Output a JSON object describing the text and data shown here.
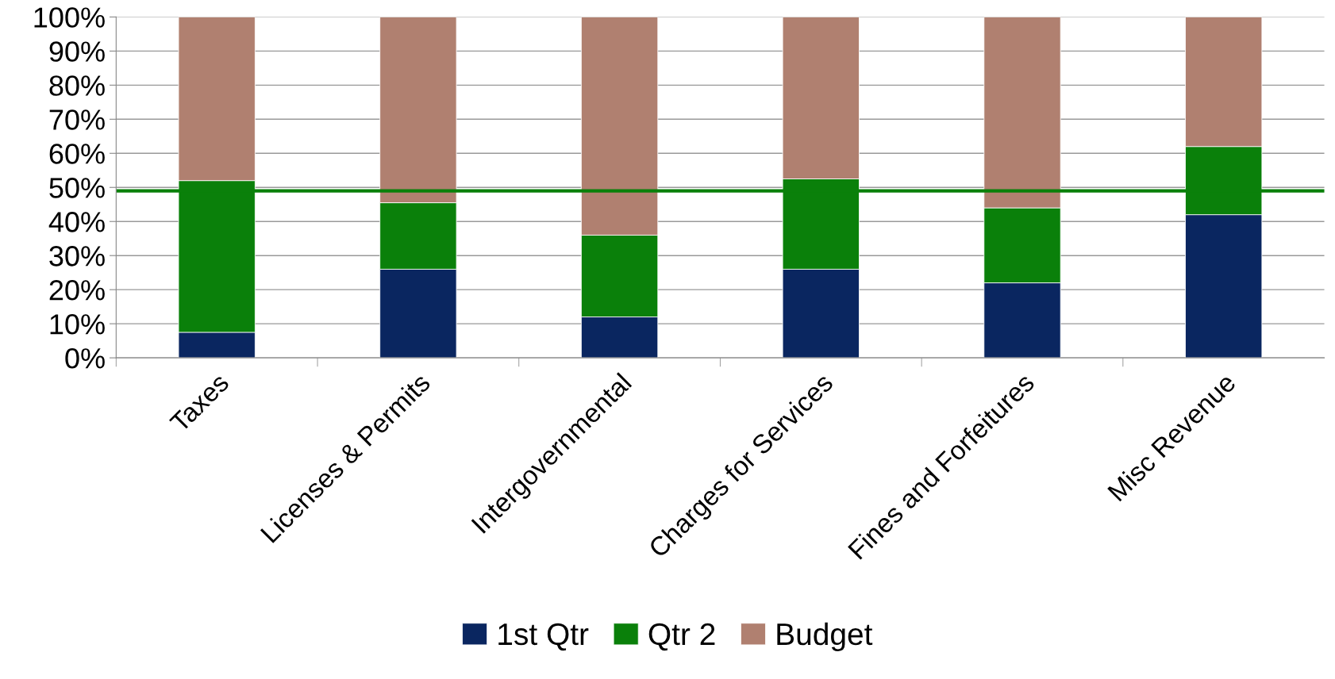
{
  "chart_data": {
    "type": "bar",
    "stacked": true,
    "categories": [
      "Taxes",
      "Licenses & Permits",
      "Intergovernmental",
      "Charges for Services",
      "Fines and Forfeitures",
      "Misc Revenue"
    ],
    "series": [
      {
        "name": "1st Qtr",
        "color": "#0a2660",
        "values": [
          7.5,
          26,
          12,
          26,
          22,
          42
        ]
      },
      {
        "name": "Qtr 2",
        "color": "#0a800a",
        "values": [
          44.5,
          19.5,
          24,
          26.5,
          22,
          20
        ]
      },
      {
        "name": "Budget",
        "color": "#b08070",
        "values": [
          48,
          54.5,
          64,
          47.5,
          56,
          38
        ]
      }
    ],
    "ylim": [
      0,
      100
    ],
    "yticks": [
      {
        "value": 0,
        "label": "0%"
      },
      {
        "value": 10,
        "label": "10%"
      },
      {
        "value": 20,
        "label": "20%"
      },
      {
        "value": 30,
        "label": "30%"
      },
      {
        "value": 40,
        "label": "40%"
      },
      {
        "value": 50,
        "label": "50%"
      },
      {
        "value": 60,
        "label": "60%"
      },
      {
        "value": 70,
        "label": "70%"
      },
      {
        "value": 80,
        "label": "80%"
      },
      {
        "value": 90,
        "label": "90%"
      },
      {
        "value": 100,
        "label": "100%"
      }
    ],
    "ref_lines": [
      {
        "axis": "y",
        "value": 49,
        "color": "#0a800a",
        "line_style": "solid"
      }
    ],
    "grid": "y",
    "legend": "bottom"
  }
}
